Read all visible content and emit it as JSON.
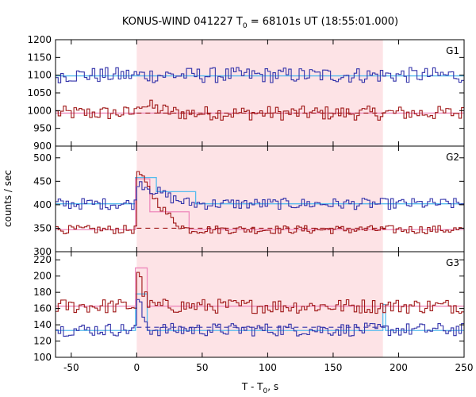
{
  "chart_data": {
    "type": "line",
    "title_main": "KONUS-WIND 041227 T",
    "title_sub": "0",
    "title_rest": " = 68101s UT (18:55:01.000)",
    "xlabel_main": "T - T",
    "xlabel_sub": "0",
    "xlabel_rest": ", s",
    "ylabel": "counts / sec",
    "xlim": [
      -62,
      250
    ],
    "xticks": [
      "-50",
      "0",
      "50",
      "100",
      "150",
      "200",
      "250"
    ],
    "grid": false,
    "highlight_interval": [
      0,
      188
    ],
    "colors": {
      "blue_series": "#3333aa",
      "red_series": "#a01818",
      "blue_model": "#55bbee",
      "red_model": "#ee88bb",
      "highlight": "#fde3e6"
    },
    "panels": [
      {
        "name": "G1",
        "ylim": [
          900,
          1200
        ],
        "yticks": [
          "900",
          "950",
          "1000",
          "1050",
          "1100",
          "1150",
          "1200"
        ],
        "blue_base": 1100,
        "blue_amp": 22,
        "red_base": 993,
        "red_amp": 20,
        "red_bump": {
          "start": 0,
          "end": 35,
          "amp": 30
        },
        "blue_bump": null,
        "blue_model": [
          [
            -62,
            1098
          ],
          [
            250,
            1098
          ]
        ],
        "red_model": [
          [
            -62,
            993
          ],
          [
            250,
            993
          ]
        ],
        "red_dashed": [
          0,
          190,
          993
        ]
      },
      {
        "name": "G2",
        "ylim": [
          300,
          525
        ],
        "yticks": [
          "300",
          "350",
          "400",
          "450",
          "500"
        ],
        "blue_base": 402,
        "blue_amp": 12,
        "red_base": 347,
        "red_amp": 9,
        "red_bump": {
          "start": -1,
          "end": 40,
          "amp": 130
        },
        "blue_bump": {
          "start": -1,
          "end": 45,
          "amp": 50
        },
        "blue_model": [
          [
            -62,
            402
          ],
          [
            -1,
            402
          ],
          [
            -1,
            458
          ],
          [
            15,
            458
          ],
          [
            15,
            428
          ],
          [
            45,
            428
          ],
          [
            45,
            402
          ],
          [
            250,
            402
          ]
        ],
        "red_model": [
          [
            -62,
            347
          ],
          [
            -1,
            347
          ],
          [
            -1,
            455
          ],
          [
            10,
            455
          ],
          [
            10,
            385
          ],
          [
            40,
            385
          ],
          [
            40,
            347
          ],
          [
            250,
            347
          ]
        ],
        "red_dashed": [
          0,
          190,
          350
        ]
      },
      {
        "name": "G3",
        "ylim": [
          100,
          230
        ],
        "yticks": [
          "100",
          "120",
          "140",
          "160",
          "180",
          "200",
          "220"
        ],
        "blue_base": 134,
        "blue_amp": 8,
        "red_base": 163,
        "red_amp": 9,
        "red_bump": {
          "start": -1,
          "end": 10,
          "amp": 50
        },
        "blue_bump": {
          "start": -1,
          "end": 10,
          "amp": 45
        },
        "blue_model": [
          [
            -62,
            133
          ],
          [
            -1,
            133
          ],
          [
            -1,
            178
          ],
          [
            8,
            178
          ],
          [
            8,
            133
          ],
          [
            188,
            133
          ],
          [
            188,
            165
          ],
          [
            190,
            165
          ],
          [
            190,
            133
          ],
          [
            250,
            133
          ]
        ],
        "red_model": [
          [
            -62,
            163
          ],
          [
            -1,
            163
          ],
          [
            -1,
            210
          ],
          [
            8,
            210
          ],
          [
            8,
            163
          ],
          [
            250,
            163
          ]
        ],
        "blue_dashed": [
          0,
          190,
          137
        ]
      }
    ]
  }
}
